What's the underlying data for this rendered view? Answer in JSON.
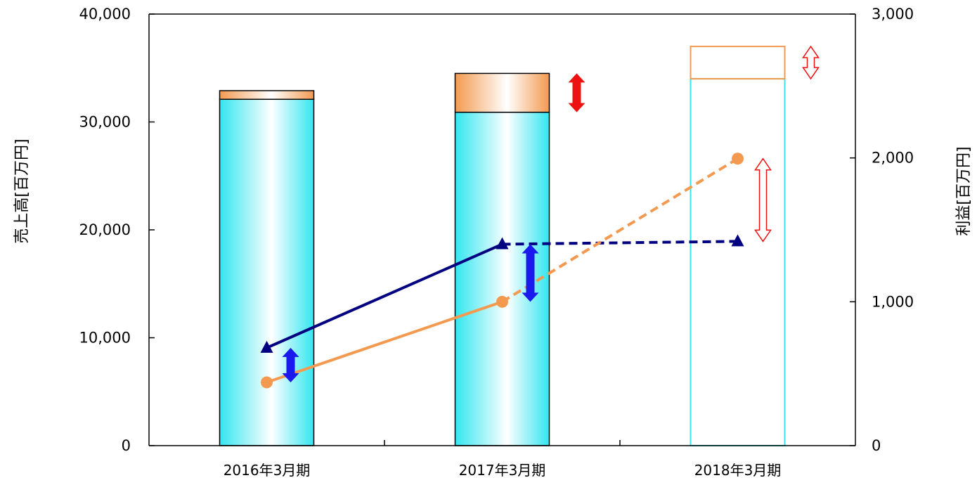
{
  "chart_data": {
    "type": "bar",
    "categories": [
      "2016年3月期",
      "2017年3月期",
      "2018年3月期"
    ],
    "ylabel": "売上高[百万円]",
    "y2label": "利益[百万円]",
    "ylim": [
      0,
      40000
    ],
    "y2lim": [
      0,
      3000
    ],
    "y_ticks": [
      "0",
      "10,000",
      "20,000",
      "30,000",
      "40,000"
    ],
    "y2_ticks": [
      "0",
      "1,000",
      "2,000",
      "3,000"
    ],
    "bars": {
      "base": [
        32100,
        30900,
        34000
      ],
      "top": [
        32900,
        34500,
        37000
      ],
      "forecast_index": 2
    },
    "series": [
      {
        "axis": "right",
        "marker": "triangle",
        "color": "#000080",
        "values": [
          680,
          1400,
          1420
        ],
        "forecast_from_index": 1
      },
      {
        "axis": "right",
        "marker": "circle",
        "color": "#f39a50",
        "values": [
          440,
          1000,
          1995
        ],
        "forecast_from_index": 1
      }
    ],
    "colors": {
      "bar_base": "#33e6f0",
      "bar_top": "#f39a50",
      "arrow_blue": "#1a1aee",
      "arrow_red": "#ee1111"
    },
    "legend": "none",
    "grid": false
  }
}
